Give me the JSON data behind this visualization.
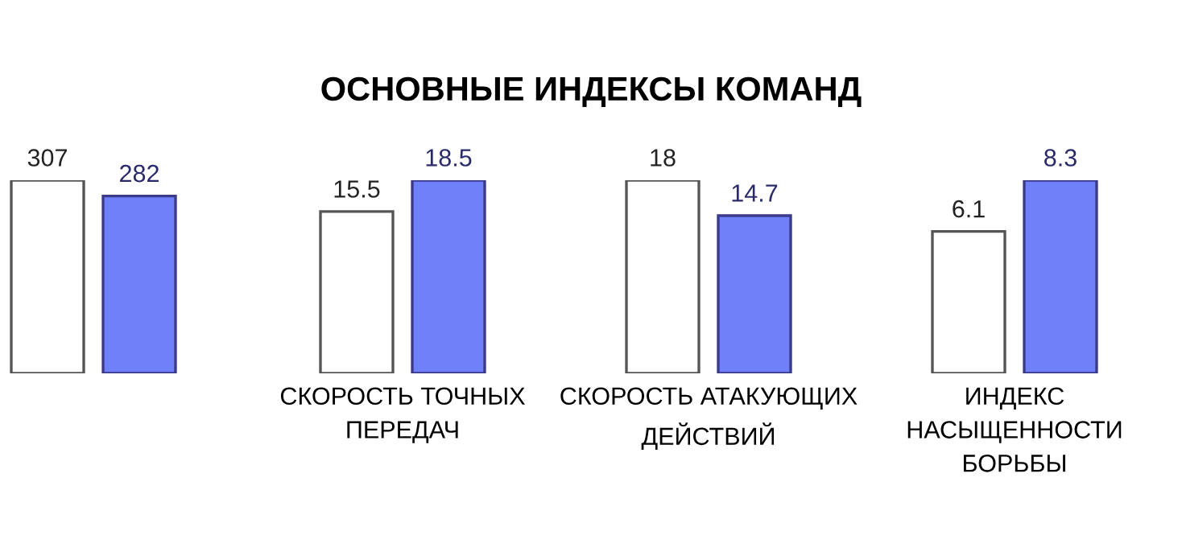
{
  "chart_data": [
    {
      "type": "bar",
      "categories": [
        null
      ],
      "series": [
        {
          "color": "#ffffff",
          "values": [
            307
          ]
        },
        {
          "color": "#7080f8",
          "values": [
            282
          ]
        }
      ],
      "data_labels": true,
      "tick_labels": "x",
      "legend": false
    },
    {
      "type": "bar",
      "categories": [
        "СКОРОСТЬ ТОЧНЫХ\nПЕРЕДАЧ"
      ],
      "series": [
        {
          "color": "#ffffff",
          "values": [
            15.5
          ]
        },
        {
          "color": "#7080f8",
          "values": [
            18.5
          ]
        }
      ],
      "data_labels": true,
      "tick_labels": "x",
      "legend": false
    },
    {
      "type": "bar",
      "title": "ОСНОВНЫЕ ИНДЕКСЫ КОМАНД",
      "categories": [
        "СКОРОСТЬ АТАКУЮЩИХ\nДЕЙСТВИЙ"
      ],
      "series": [
        {
          "color": "#ffffff",
          "values": [
            18
          ]
        },
        {
          "color": "#7080f8",
          "values": [
            14.7
          ]
        }
      ],
      "data_labels": true,
      "tick_labels": "x",
      "legend": false
    },
    {
      "type": "bar",
      "categories": [
        "ИНДЕКС\nНАСЫЩЕННОСТИ\nБОРЬБЫ"
      ],
      "series": [
        {
          "color": "#ffffff",
          "values": [
            6.1
          ]
        },
        {
          "color": "#7080f8",
          "values": [
            8.3
          ]
        }
      ],
      "data_labels": true,
      "tick_labels": "x",
      "legend": false
    }
  ]
}
